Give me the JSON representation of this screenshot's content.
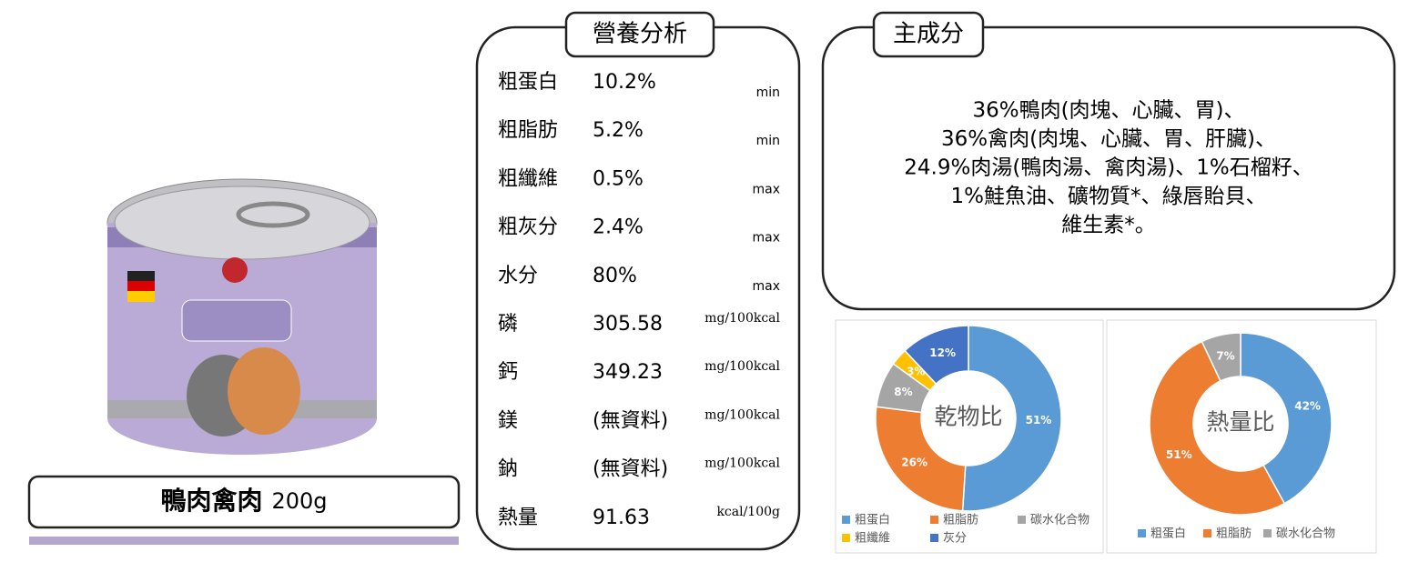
{
  "product": {
    "name": "鴨肉禽肉",
    "weight": "200g"
  },
  "nutrition": {
    "title": "營養分析",
    "rows": [
      [
        "粗蛋白",
        "10.2%",
        "min"
      ],
      [
        "粗脂肪",
        "5.2%",
        "min"
      ],
      [
        "粗纖維",
        "0.5%",
        "max"
      ],
      [
        "粗灰分",
        "2.4%",
        "max"
      ],
      [
        "水分",
        "80%",
        "max"
      ],
      [
        "磷",
        "305.58",
        "mg/100kcal"
      ],
      [
        "鈣",
        "349.23",
        "mg/100kcal"
      ],
      [
        "鎂",
        "(無資料)",
        "mg/100kcal"
      ],
      [
        "鈉",
        "(無資料)",
        "mg/100kcal"
      ],
      [
        "熱量",
        "91.63",
        "kcal/100g"
      ]
    ]
  },
  "ingredients": {
    "title": "主成分",
    "lines": [
      "36%鴨肉(肉塊、心臟、胃)、",
      "36%禽肉(肉塊、心臟、胃、肝臟)、",
      "24.9%肉湯(鴨肉湯、禽肉湯)、1%石榴籽、",
      "1%鮭魚油、礦物質*、綠唇貽貝、",
      "維生素*。"
    ]
  },
  "chart_data": [
    {
      "type": "pie",
      "title": "乾物比",
      "categories": [
        "粗蛋白",
        "粗脂肪",
        "碳水化合物",
        "粗纖維",
        "灰分"
      ],
      "values": [
        51,
        26,
        8,
        3,
        12
      ],
      "value_labels": [
        "51%",
        "26%",
        "8%",
        "3%",
        "12%"
      ],
      "colors": [
        "#5b9bd5",
        "#ed7d31",
        "#a5a5a5",
        "#ffc000",
        "#4472c4"
      ]
    },
    {
      "type": "pie",
      "title": "熱量比",
      "categories": [
        "粗蛋白",
        "粗脂肪",
        "碳水化合物"
      ],
      "values": [
        42,
        51,
        7
      ],
      "value_labels": [
        "42%",
        "51%",
        "7%"
      ],
      "colors": [
        "#5b9bd5",
        "#ed7d31",
        "#a5a5a5"
      ]
    }
  ]
}
